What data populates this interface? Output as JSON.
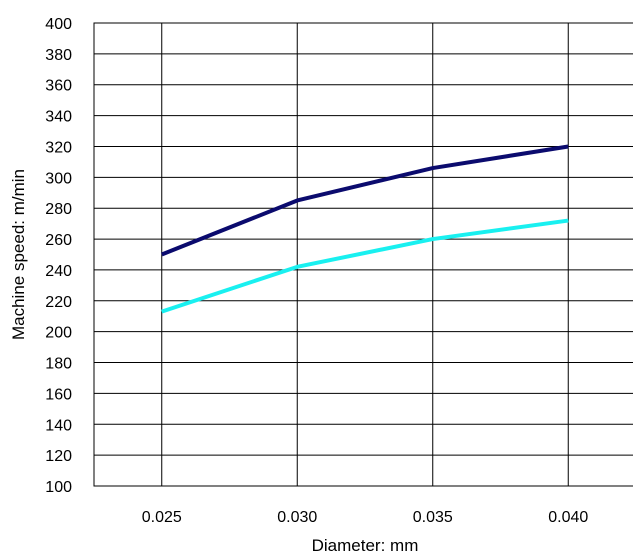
{
  "chart_data": {
    "type": "line",
    "title": "",
    "xlabel": "Diameter: mm",
    "ylabel": "Machine speed: m/min",
    "categories": [
      "0.025",
      "0.030",
      "0.035",
      "0.040"
    ],
    "ylim": [
      100,
      400
    ],
    "ytick_step": 20,
    "grid": true,
    "legend": "none",
    "series": [
      {
        "color": "#0b0b6e",
        "values": [
          250,
          285,
          306,
          320
        ]
      },
      {
        "color": "#19f0f0",
        "values": [
          213,
          242,
          260,
          272
        ]
      }
    ]
  }
}
